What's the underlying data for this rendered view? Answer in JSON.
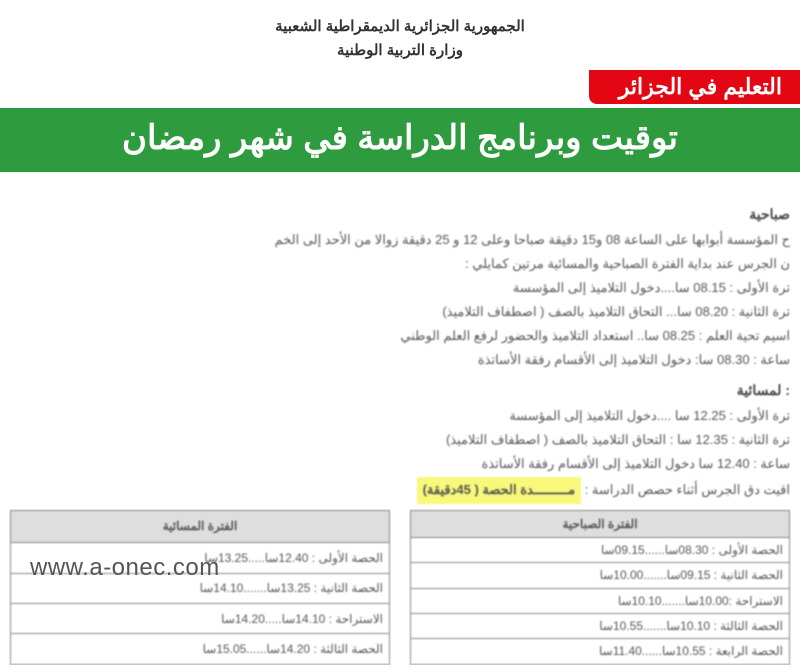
{
  "gov_line1": "الجمهورية الجزائرية الديمقراطية الشعبية",
  "gov_line2": "وزارة التربية الوطنية",
  "red_badge": "التعليم في الجزائر",
  "green_banner": "توقيت وبرنامج الدراسة في شهر رمضان",
  "morning_title": "صباحية",
  "morning_line1": "ح المؤسسة أبوابها على الساعة 08 و15 دقيقة صباحا وعلى 12 و 25 دقيقة زوالا من الأحد إلى الخم",
  "morning_line2": "ن الجرس عند بداية الفترة الصباحية والمسائية مرتين كمايلي :",
  "morning_bullet1": "ترة الأولى : 08.15 سا....دخول التلاميذ إلى المؤسسة",
  "morning_bullet2": "ترة الثانية : 08.20 سا... التحاق التلاميذ بالصف ( اصطفاف التلاميذ)",
  "morning_bullet3": "اسيم تحية العلم : 08.25 سا.. استعداد التلاميذ والحضور لرفع العلم الوطني",
  "morning_bullet4": "ساعة : 08.30 سا: دخول التلاميذ إلى الأقسام رفقة الأساتذة",
  "evening_title": ": لمسائية",
  "evening_bullet1": "ترة الأولى : 12.25 سا ....دخول التلاميذ إلى المؤسسة",
  "evening_bullet2": "ترة الثانية : 12.35 سا : التحاق التلاميذ بالصف ( اصطفاف التلاميذ)",
  "evening_bullet3": "ساعة : 12.40 سا دخول التلاميذ إلى الأقسام رفقة الأساتذة",
  "bell_line": "اقيت دق الجرس أثناء حصص الدراسة : مـــــــــدة الحصة ( 45دقيقة)",
  "morning_table_header": "الفترة الصباحية",
  "evening_table_header": "الفترة المسائية",
  "morning_rows": [
    "الحصة الأولى : 08.30سا......09.15سا",
    "الحصة الثانية : 09.15سا.......10.00سا",
    "الاستراحة :10.00سا.......10.10سا",
    "الحصة الثالثة : 10.10سا.......10.55سا",
    "الحصة الرابعة : 10.55سا......11.40سا"
  ],
  "evening_rows": [
    "الحصة الأولى : 12.40سا.....13.25سا",
    "الحصة الثانية : 13.25سا.......14.10سا",
    "الاستراحة : 14.10سا.....14.20سا",
    "الحصة الثالثة : 14.20سا......15.05سا"
  ],
  "watermark": "www.a-onec.com"
}
